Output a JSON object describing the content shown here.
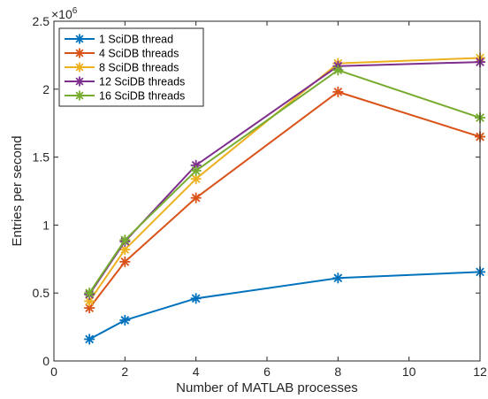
{
  "chart_data": {
    "type": "line",
    "title": "",
    "xlabel": "Number of MATLAB processes",
    "ylabel": "Entries per second",
    "y_multiplier_label": "×10",
    "y_multiplier_exponent": "6",
    "xlim": [
      0,
      12
    ],
    "ylim": [
      0,
      2.5
    ],
    "x_ticks": [
      0,
      2,
      4,
      6,
      8,
      10,
      12
    ],
    "y_ticks": [
      0,
      0.5,
      1,
      1.5,
      2,
      2.5
    ],
    "x_tick_labels": [
      "0",
      "2",
      "4",
      "6",
      "8",
      "10",
      "12"
    ],
    "y_tick_labels": [
      "0",
      "0.5",
      "1",
      "1.5",
      "2",
      "2.5"
    ],
    "grid": false,
    "legend_position": "top-left",
    "marker": "asterisk",
    "x": [
      1,
      2,
      4,
      8,
      12
    ],
    "series": [
      {
        "name": "1 SciDB thread",
        "color": "#0072BD",
        "values": [
          0.16,
          0.3,
          0.46,
          0.61,
          0.655
        ]
      },
      {
        "name": "4 SciDB threads",
        "color": "#D95319",
        "values": [
          0.39,
          0.73,
          1.2,
          1.98,
          1.65
        ]
      },
      {
        "name": "8 SciDB threads",
        "color": "#EDB120",
        "values": [
          0.44,
          0.82,
          1.34,
          2.19,
          2.23
        ]
      },
      {
        "name": "12 SciDB threads",
        "color": "#7E2F8E",
        "values": [
          0.49,
          0.88,
          1.44,
          2.17,
          2.2
        ]
      },
      {
        "name": "16 SciDB threads",
        "color": "#77AC30",
        "values": [
          0.5,
          0.89,
          1.4,
          2.14,
          1.79
        ]
      }
    ]
  }
}
